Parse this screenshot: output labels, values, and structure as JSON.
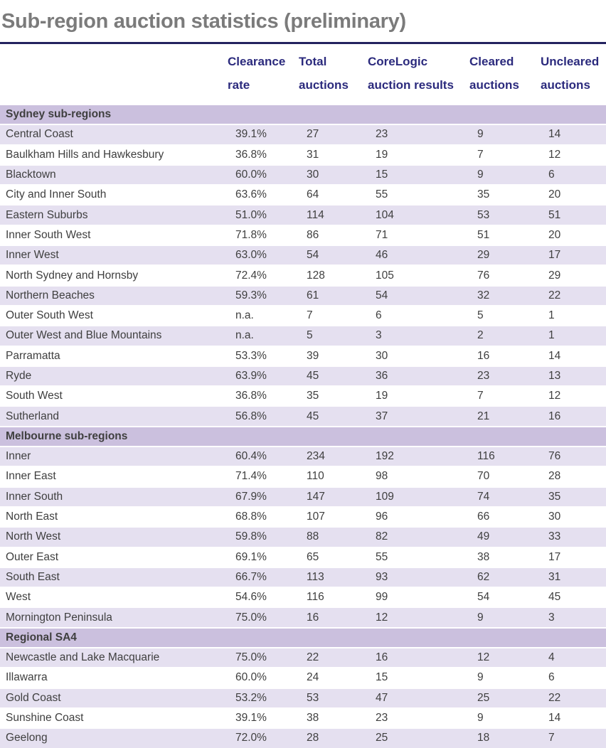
{
  "title": "Sub-region auction statistics (preliminary)",
  "colors": {
    "title_text": "#7b7b7b",
    "header_text": "#2b2a7d",
    "rule_navy": "#23225f",
    "section_band_bg": "#cbc0de",
    "shaded_row_bg": "#e5e0f0",
    "row_text": "#3f3f3f"
  },
  "chart_data": {
    "type": "table",
    "title": "Sub-region auction statistics (preliminary)",
    "columns": [
      "",
      "Clearance rate",
      "Total auctions",
      "CoreLogic auction results",
      "Cleared auctions",
      "Uncleared auctions"
    ],
    "header_lines": [
      [
        "",
        ""
      ],
      [
        "Clearance",
        "rate"
      ],
      [
        "Total",
        "auctions"
      ],
      [
        "CoreLogic",
        "auction results"
      ],
      [
        "Cleared",
        "auctions"
      ],
      [
        "Uncleared",
        "auctions"
      ]
    ],
    "sections": [
      {
        "name": "Sydney sub-regions",
        "rows": [
          [
            "Central Coast",
            "39.1%",
            "27",
            "23",
            "9",
            "14"
          ],
          [
            "Baulkham Hills and Hawkesbury",
            "36.8%",
            "31",
            "19",
            "7",
            "12"
          ],
          [
            "Blacktown",
            "60.0%",
            "30",
            "15",
            "9",
            "6"
          ],
          [
            "City and Inner South",
            "63.6%",
            "64",
            "55",
            "35",
            "20"
          ],
          [
            "Eastern Suburbs",
            "51.0%",
            "114",
            "104",
            "53",
            "51"
          ],
          [
            "Inner South West",
            "71.8%",
            "86",
            "71",
            "51",
            "20"
          ],
          [
            "Inner West",
            "63.0%",
            "54",
            "46",
            "29",
            "17"
          ],
          [
            "North Sydney and Hornsby",
            "72.4%",
            "128",
            "105",
            "76",
            "29"
          ],
          [
            "Northern Beaches",
            "59.3%",
            "61",
            "54",
            "32",
            "22"
          ],
          [
            "Outer South West",
            "n.a.",
            "7",
            "6",
            "5",
            "1"
          ],
          [
            "Outer West and Blue Mountains",
            "n.a.",
            "5",
            "3",
            "2",
            "1"
          ],
          [
            "Parramatta",
            "53.3%",
            "39",
            "30",
            "16",
            "14"
          ],
          [
            "Ryde",
            "63.9%",
            "45",
            "36",
            "23",
            "13"
          ],
          [
            "South West",
            "36.8%",
            "35",
            "19",
            "7",
            "12"
          ],
          [
            "Sutherland",
            "56.8%",
            "45",
            "37",
            "21",
            "16"
          ]
        ]
      },
      {
        "name": "Melbourne sub-regions",
        "rows": [
          [
            "Inner",
            "60.4%",
            "234",
            "192",
            "116",
            "76"
          ],
          [
            "Inner East",
            "71.4%",
            "110",
            "98",
            "70",
            "28"
          ],
          [
            "Inner South",
            "67.9%",
            "147",
            "109",
            "74",
            "35"
          ],
          [
            "North East",
            "68.8%",
            "107",
            "96",
            "66",
            "30"
          ],
          [
            "North West",
            "59.8%",
            "88",
            "82",
            "49",
            "33"
          ],
          [
            "Outer East",
            "69.1%",
            "65",
            "55",
            "38",
            "17"
          ],
          [
            "South East",
            "66.7%",
            "113",
            "93",
            "62",
            "31"
          ],
          [
            "West",
            "54.6%",
            "116",
            "99",
            "54",
            "45"
          ],
          [
            "Mornington Peninsula",
            "75.0%",
            "16",
            "12",
            "9",
            "3"
          ]
        ]
      },
      {
        "name": "Regional SA4",
        "rows": [
          [
            "Newcastle and Lake Macquarie",
            "75.0%",
            "22",
            "16",
            "12",
            "4"
          ],
          [
            "Illawarra",
            "60.0%",
            "24",
            "15",
            "9",
            "6"
          ],
          [
            "Gold Coast",
            "53.2%",
            "53",
            "47",
            "25",
            "22"
          ],
          [
            "Sunshine Coast",
            "39.1%",
            "38",
            "23",
            "9",
            "14"
          ],
          [
            "Geelong",
            "72.0%",
            "28",
            "25",
            "18",
            "7"
          ]
        ]
      }
    ]
  }
}
